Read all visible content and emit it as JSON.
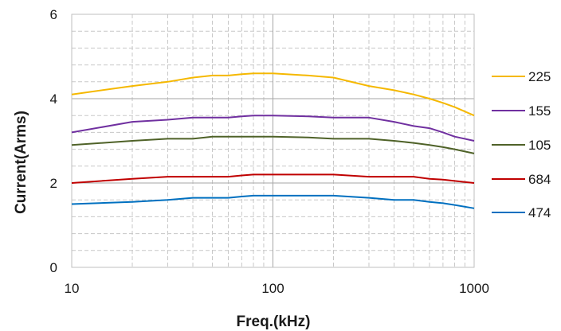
{
  "chart_data": {
    "type": "line",
    "title": "",
    "xlabel": "Freq.(kHz)",
    "ylabel": "Current(Arms)",
    "x_scale": "log",
    "xlim": [
      10,
      1000
    ],
    "ylim": [
      0,
      6
    ],
    "x_ticks": [
      10,
      100,
      1000
    ],
    "x_tick_labels": [
      "10",
      "100",
      "1000"
    ],
    "y_ticks": [
      0,
      2,
      4,
      6
    ],
    "y_tick_labels": [
      "0",
      "2",
      "4",
      "6"
    ],
    "grid": true,
    "legend_position": "right",
    "series": [
      {
        "name": "225",
        "color": "#F5B800",
        "x": [
          10,
          20,
          30,
          40,
          50,
          60,
          70,
          80,
          90,
          100,
          150,
          200,
          300,
          400,
          500,
          600,
          700,
          800,
          1000
        ],
        "y": [
          4.1,
          4.3,
          4.4,
          4.5,
          4.55,
          4.55,
          4.58,
          4.6,
          4.6,
          4.6,
          4.55,
          4.5,
          4.3,
          4.2,
          4.1,
          4.0,
          3.9,
          3.8,
          3.6
        ]
      },
      {
        "name": "155",
        "color": "#7030A0",
        "x": [
          10,
          20,
          30,
          40,
          50,
          60,
          70,
          80,
          90,
          100,
          150,
          200,
          300,
          400,
          500,
          600,
          700,
          800,
          1000
        ],
        "y": [
          3.2,
          3.45,
          3.5,
          3.55,
          3.55,
          3.55,
          3.58,
          3.6,
          3.6,
          3.6,
          3.58,
          3.55,
          3.55,
          3.45,
          3.35,
          3.3,
          3.2,
          3.1,
          3.0
        ]
      },
      {
        "name": "105",
        "color": "#4F6228",
        "x": [
          10,
          20,
          30,
          40,
          50,
          60,
          70,
          80,
          90,
          100,
          150,
          200,
          300,
          400,
          500,
          600,
          700,
          800,
          1000
        ],
        "y": [
          2.9,
          3.0,
          3.05,
          3.05,
          3.1,
          3.1,
          3.1,
          3.1,
          3.1,
          3.1,
          3.08,
          3.05,
          3.05,
          3.0,
          2.95,
          2.9,
          2.85,
          2.8,
          2.7
        ]
      },
      {
        "name": "684",
        "color": "#C00000",
        "x": [
          10,
          20,
          30,
          40,
          50,
          60,
          70,
          80,
          90,
          100,
          150,
          200,
          300,
          400,
          500,
          600,
          700,
          800,
          1000
        ],
        "y": [
          2.0,
          2.1,
          2.15,
          2.15,
          2.15,
          2.15,
          2.18,
          2.2,
          2.2,
          2.2,
          2.2,
          2.2,
          2.15,
          2.15,
          2.15,
          2.1,
          2.08,
          2.05,
          2.0
        ]
      },
      {
        "name": "474",
        "color": "#0070C0",
        "x": [
          10,
          20,
          30,
          40,
          50,
          60,
          70,
          80,
          90,
          100,
          150,
          200,
          300,
          400,
          500,
          600,
          700,
          800,
          1000
        ],
        "y": [
          1.5,
          1.55,
          1.6,
          1.65,
          1.65,
          1.65,
          1.68,
          1.7,
          1.7,
          1.7,
          1.7,
          1.7,
          1.65,
          1.6,
          1.6,
          1.55,
          1.52,
          1.48,
          1.4
        ]
      }
    ]
  }
}
